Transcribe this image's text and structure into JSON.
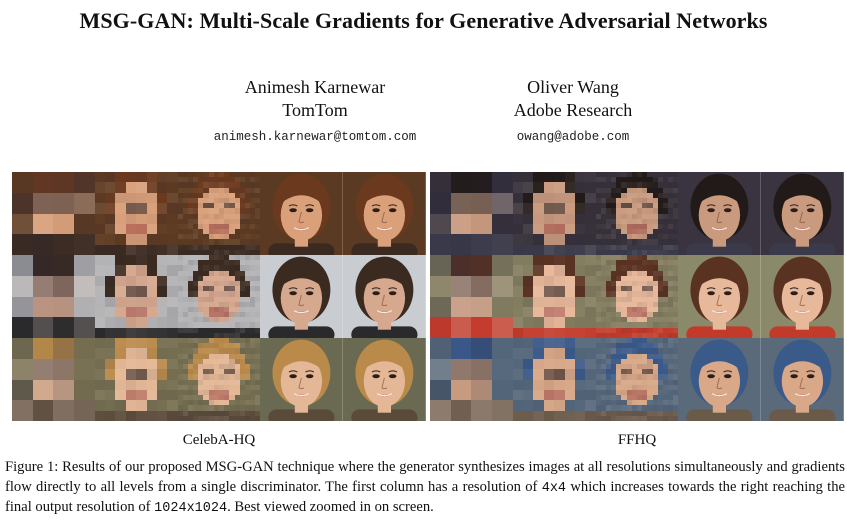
{
  "title": "MSG-GAN: Multi-Scale Gradients for Generative Adversarial Networks",
  "authors": [
    {
      "name": "Animesh Karnewar",
      "affiliation": "TomTom",
      "email": "animesh.karnewar@tomtom.com"
    },
    {
      "name": "Oliver Wang",
      "affiliation": "Adobe Research",
      "email": "owang@adobe.com"
    }
  ],
  "panels": [
    {
      "label": "CelebA-HQ",
      "rows": [
        {
          "bg": "#5a3a22",
          "skin": "#d9a07a",
          "hair": "#6b3a1e",
          "cloth": "#3a2a22"
        },
        {
          "bg": "#c9ccd0",
          "skin": "#d6a88e",
          "hair": "#3a2a20",
          "cloth": "#2a2a2c"
        },
        {
          "bg": "#6a6a52",
          "skin": "#e4b896",
          "hair": "#b98a4a",
          "cloth": "#5a4a3a"
        }
      ]
    },
    {
      "label": "FFHQ",
      "rows": [
        {
          "bg": "#3a3440",
          "skin": "#c99a7e",
          "hair": "#221a18",
          "cloth": "#3a3a4a"
        },
        {
          "bg": "#8a8a6a",
          "skin": "#e8b89a",
          "hair": "#5a3222",
          "cloth": "#c23a2a"
        },
        {
          "bg": "#5a6a7a",
          "skin": "#d8a888",
          "hair": "#3a5a8a",
          "cloth": "#6a5a4a"
        }
      ]
    }
  ],
  "caption": {
    "figure_label": "Figure 1:",
    "text_1": " Results of our proposed MSG-GAN technique where the generator synthesizes images at all resolutions simultaneously and gradients flow directly to all levels from a single discriminator. The first column has a resolution of ",
    "res_start": "4x4",
    "text_2": " which increases towards the right reaching the final output resolution of ",
    "res_end": "1024x1024",
    "text_3": ". Best viewed zoomed in on screen."
  }
}
